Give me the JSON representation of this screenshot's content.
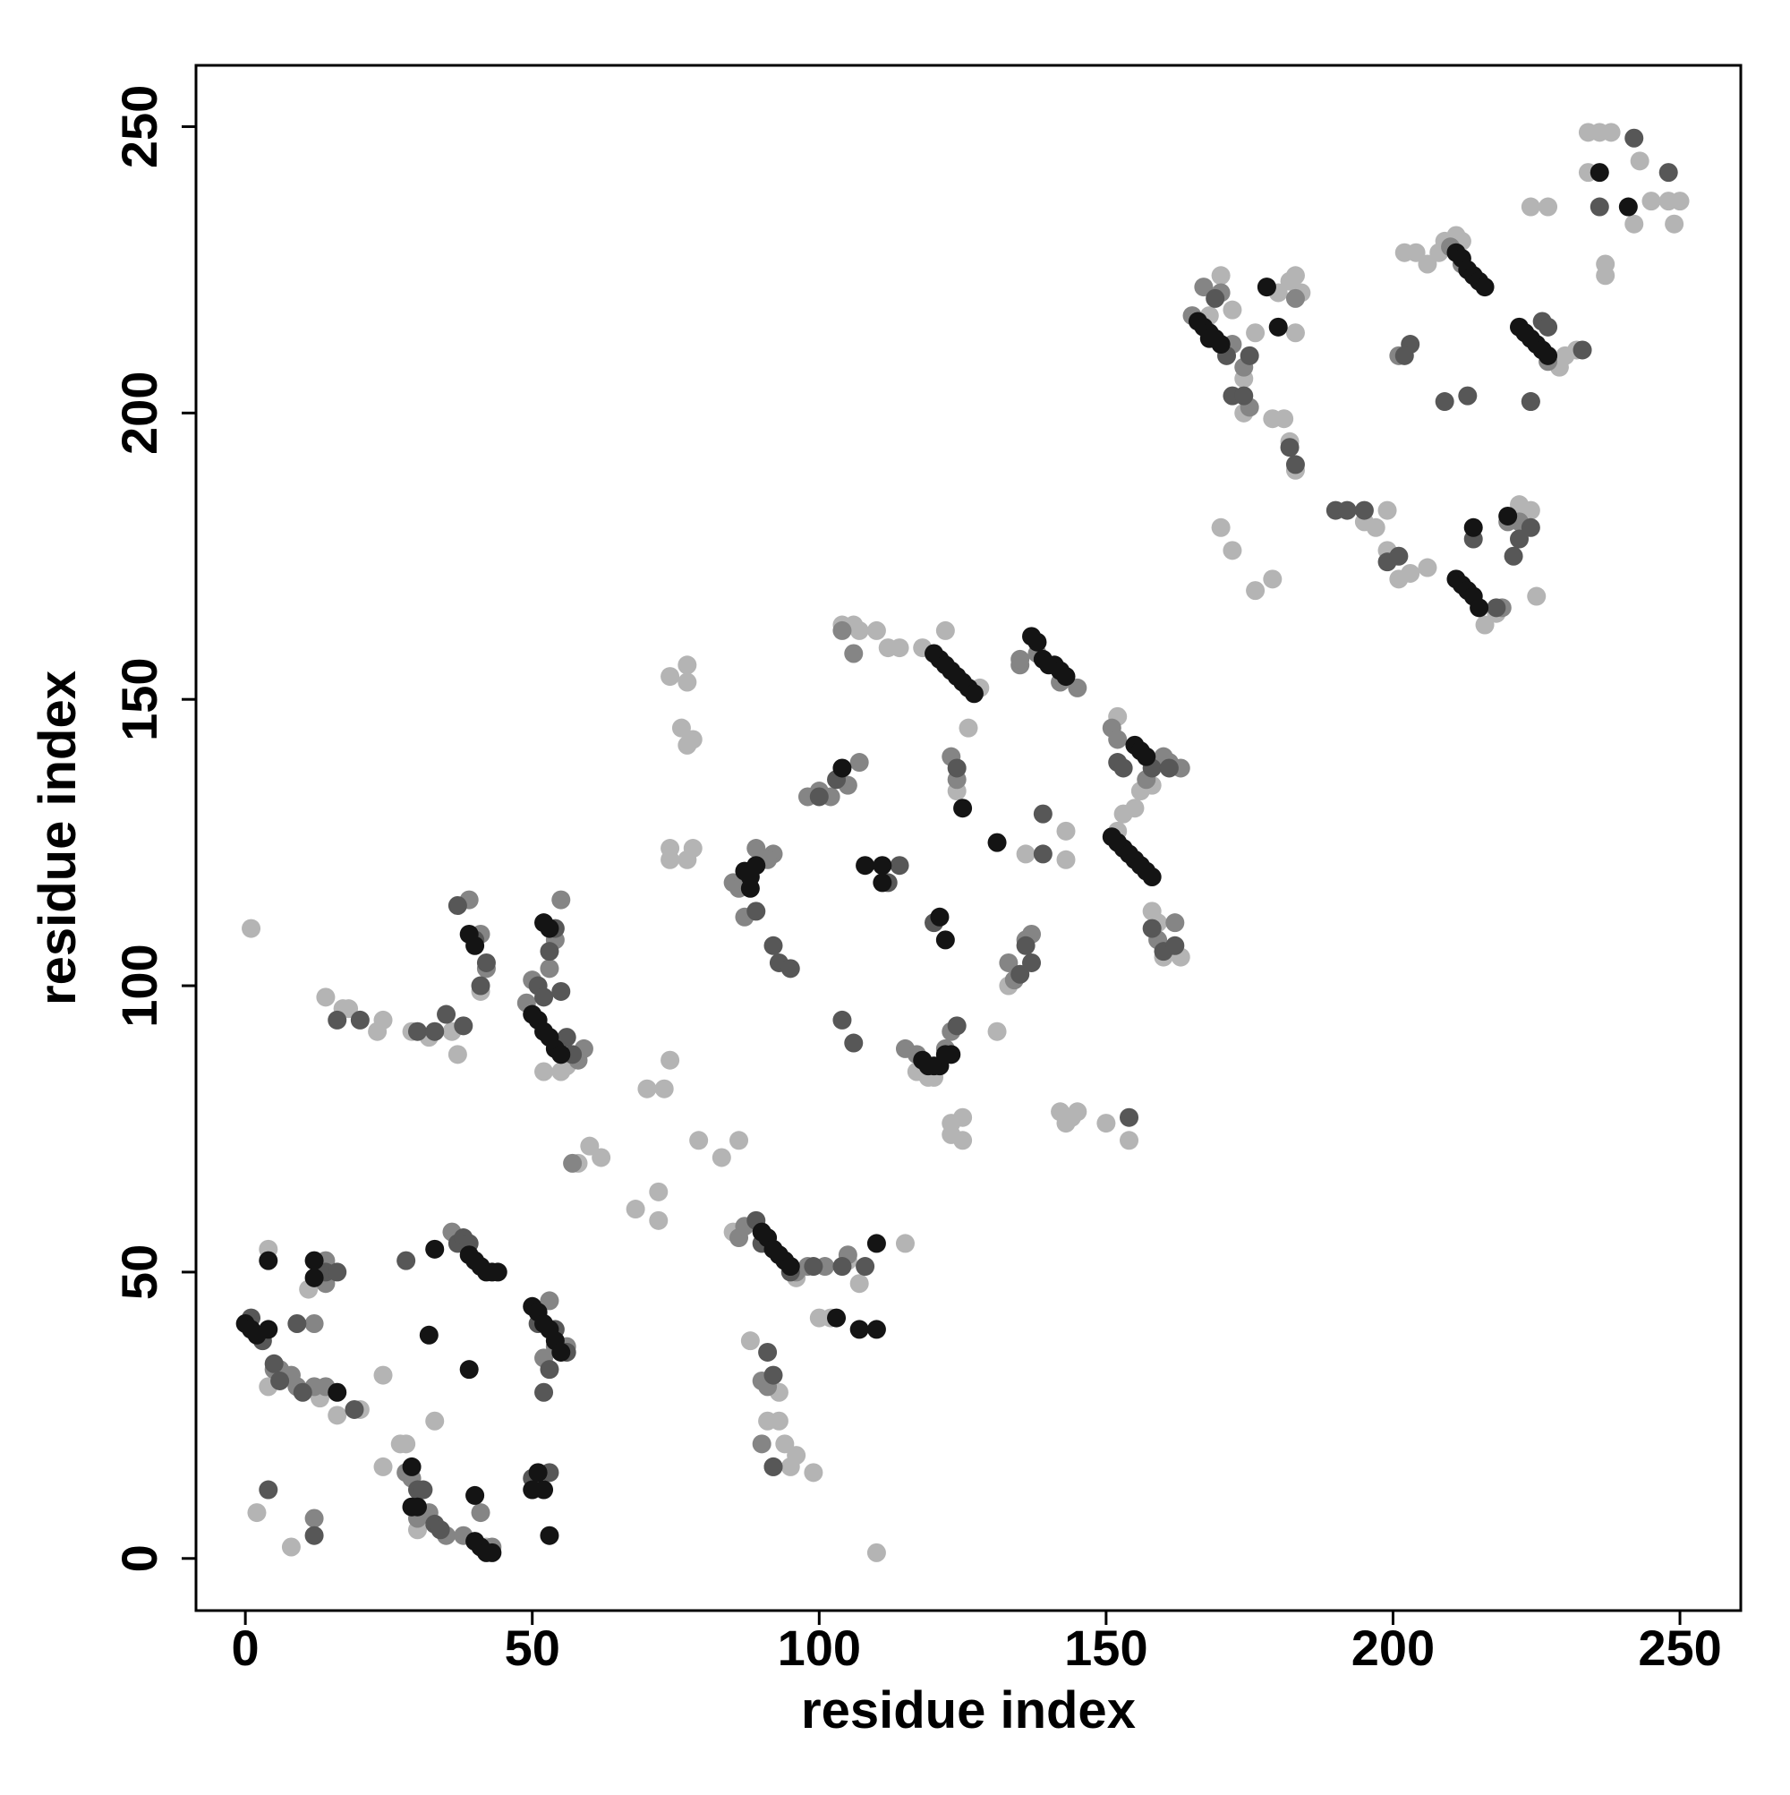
{
  "chart_data": {
    "type": "scatter",
    "x_label": "residue index",
    "y_label": "residue index",
    "xlim": [
      -8.6,
      260.6
    ],
    "ylim": [
      -9.1,
      260.7
    ],
    "xticks": [
      0,
      50,
      100,
      150,
      200,
      250
    ],
    "yticks": [
      0,
      50,
      100,
      150,
      200,
      250
    ],
    "grid": false,
    "series": [
      {
        "color": "#b4b4b4",
        "x": [
          1,
          4,
          2,
          8,
          4,
          11,
          13,
          16,
          20,
          24,
          24,
          27,
          28,
          33,
          30,
          40,
          42,
          41,
          37,
          24,
          23,
          32,
          29,
          36,
          17,
          18,
          14,
          52,
          55,
          56,
          58,
          60,
          62,
          74,
          70,
          73,
          68,
          72,
          72,
          74,
          74,
          77,
          78,
          76,
          77,
          78,
          74,
          77,
          77,
          79,
          83,
          86,
          88,
          91,
          93,
          93,
          94,
          95,
          99,
          96,
          85,
          96,
          100,
          102,
          105,
          107,
          110,
          115,
          104,
          106,
          107,
          110,
          112,
          114,
          118,
          122,
          126,
          124,
          128,
          131,
          133,
          136,
          143,
          143,
          142,
          145,
          143,
          144,
          155,
          152,
          156,
          158,
          160,
          163,
          159,
          158,
          152,
          153,
          150,
          154,
          123,
          125,
          123,
          125,
          117,
          119,
          120,
          168,
          170,
          172,
          174,
          174,
          179,
          181,
          182,
          183,
          180,
          182,
          184,
          183,
          183,
          195,
          197,
          199,
          199,
          201,
          203,
          206,
          202,
          204,
          208,
          209,
          211,
          212,
          206,
          216,
          218,
          222,
          224,
          225,
          224,
          227,
          229,
          230,
          232,
          234,
          236,
          238,
          234,
          237,
          237,
          242,
          245,
          248,
          249,
          250,
          243,
          172,
          176,
          179,
          170,
          176
        ],
        "y": [
          110,
          54,
          8,
          2,
          30,
          47,
          28,
          25,
          26,
          16,
          32,
          20,
          20,
          24,
          5,
          11,
          2,
          99,
          88,
          94,
          92,
          91,
          92,
          92,
          96,
          96,
          98,
          85,
          85,
          86,
          69,
          72,
          70,
          87,
          82,
          82,
          61,
          59,
          64,
          122,
          124,
          122,
          124,
          145,
          142,
          143,
          154,
          153,
          156,
          73,
          70,
          73,
          38,
          24,
          24,
          29,
          20,
          16,
          15,
          18,
          57,
          49,
          42,
          42,
          52,
          48,
          1,
          55,
          163,
          163,
          162,
          162,
          159,
          159,
          159,
          162,
          145,
          134,
          152,
          92,
          100,
          123,
          122,
          127,
          78,
          78,
          76,
          77,
          131,
          147,
          134,
          135,
          105,
          105,
          111,
          113,
          127,
          130,
          76,
          73,
          74,
          77,
          76,
          73,
          85,
          84,
          84,
          217,
          224,
          218,
          206,
          200,
          199,
          199,
          195,
          190,
          221,
          223,
          221,
          224,
          214,
          181,
          180,
          183,
          176,
          171,
          172,
          173,
          228,
          228,
          228,
          230,
          231,
          230,
          226,
          163,
          165,
          184,
          183,
          168,
          236,
          236,
          208,
          210,
          211,
          249,
          249,
          249,
          242,
          226,
          224,
          233,
          237,
          237,
          233,
          237,
          244,
          176,
          169,
          171,
          180,
          214
        ]
      },
      {
        "color": "#858585",
        "x": [
          3,
          5,
          6,
          8,
          9,
          12,
          14,
          12,
          14,
          14,
          28,
          29,
          30,
          32,
          35,
          38,
          41,
          36,
          39,
          41,
          42,
          49,
          50,
          53,
          54,
          55,
          53,
          54,
          56,
          58,
          59,
          52,
          86,
          87,
          93,
          96,
          98,
          101,
          105,
          90,
          91,
          92,
          90,
          85,
          86,
          87,
          89,
          92,
          91,
          98,
          100,
          102,
          105,
          107,
          106,
          104,
          115,
          117,
          122,
          123,
          123,
          124,
          133,
          134,
          136,
          137,
          135,
          135,
          138,
          142,
          145,
          151,
          152,
          157,
          160,
          161,
          163,
          159,
          162,
          165,
          167,
          170,
          172,
          174,
          175,
          178,
          183,
          201,
          210,
          212,
          219,
          220,
          222,
          224,
          227,
          226,
          43,
          57,
          12
        ],
        "y": [
          39,
          33,
          33,
          32,
          30,
          30,
          30,
          41,
          48,
          52,
          15,
          14,
          7,
          8,
          4,
          4,
          8,
          57,
          115,
          109,
          103,
          97,
          101,
          103,
          108,
          115,
          45,
          37,
          37,
          87,
          89,
          35,
          56,
          58,
          53,
          50,
          51,
          51,
          53,
          31,
          30,
          16,
          20,
          118,
          117,
          112,
          124,
          123,
          122,
          133,
          134,
          133,
          135,
          139,
          158,
          162,
          89,
          88,
          89,
          92,
          140,
          136,
          104,
          101,
          108,
          109,
          156,
          157,
          158,
          153,
          152,
          145,
          143,
          136,
          140,
          139,
          138,
          108,
          111,
          217,
          222,
          221,
          212,
          208,
          201,
          222,
          220,
          210,
          229,
          226,
          166,
          181,
          181,
          202,
          209,
          211,
          2,
          69,
          7
        ]
      },
      {
        "color": "#575757",
        "x": [
          1,
          3,
          5,
          6,
          10,
          9,
          14,
          16,
          28,
          29,
          30,
          31,
          33,
          34,
          37,
          38,
          39,
          40,
          42,
          41,
          51,
          52,
          53,
          54,
          56,
          57,
          51,
          54,
          56,
          53,
          52,
          53,
          50,
          4,
          12,
          89,
          90,
          91,
          92,
          92,
          95,
          99,
          104,
          108,
          104,
          106,
          103,
          100,
          89,
          92,
          93,
          95,
          114,
          112,
          120,
          124,
          124,
          135,
          137,
          136,
          139,
          139,
          154,
          152,
          153,
          158,
          161,
          158,
          160,
          162,
          169,
          172,
          174,
          175,
          171,
          183,
          182,
          190,
          192,
          195,
          199,
          201,
          203,
          202,
          209,
          213,
          214,
          218,
          221,
          222,
          224,
          224,
          226,
          227,
          233,
          242,
          248,
          236,
          16,
          20,
          35,
          38,
          30,
          33,
          37,
          55,
          19
        ],
        "y": [
          42,
          38,
          34,
          31,
          29,
          41,
          50,
          50,
          52,
          9,
          12,
          12,
          6,
          5,
          55,
          56,
          55,
          108,
          104,
          100,
          100,
          98,
          106,
          110,
          91,
          88,
          41,
          40,
          36,
          33,
          29,
          15,
          14,
          12,
          4,
          59,
          55,
          36,
          32,
          16,
          50,
          51,
          51,
          51,
          94,
          90,
          136,
          133,
          113,
          107,
          104,
          103,
          121,
          118,
          111,
          138,
          93,
          102,
          104,
          107,
          130,
          123,
          77,
          139,
          138,
          138,
          138,
          110,
          106,
          107,
          220,
          203,
          203,
          210,
          210,
          191,
          194,
          183,
          183,
          183,
          174,
          175,
          212,
          210,
          202,
          203,
          178,
          166,
          175,
          178,
          180,
          202,
          216,
          215,
          211,
          248,
          242,
          236,
          94,
          94,
          95,
          93,
          92,
          92,
          114,
          99,
          26
        ]
      },
      {
        "color": "#141414",
        "x": [
          0,
          1,
          2,
          4,
          4,
          12,
          12,
          16,
          32,
          33,
          39,
          40,
          41,
          42,
          43,
          44,
          39,
          40,
          41,
          42,
          43,
          40,
          29,
          29,
          30,
          50,
          51,
          52,
          53,
          54,
          55,
          51,
          50,
          52,
          53,
          90,
          91,
          92,
          93,
          94,
          95,
          110,
          110,
          107,
          103,
          87,
          88,
          88,
          89,
          104,
          108,
          111,
          111,
          121,
          122,
          118,
          119,
          120,
          121,
          122,
          123,
          125,
          131,
          120,
          121,
          122,
          123,
          124,
          125,
          126,
          127,
          137,
          138,
          139,
          140,
          141,
          142,
          143,
          155,
          156,
          157,
          151,
          152,
          153,
          154,
          155,
          156,
          157,
          158,
          52,
          53,
          54,
          55,
          50,
          51,
          52,
          53,
          39,
          40,
          166,
          167,
          168,
          169,
          170,
          168,
          178,
          180,
          211,
          212,
          213,
          214,
          215,
          216,
          222,
          223,
          224,
          225,
          226,
          227,
          211,
          212,
          213,
          214,
          215,
          214,
          220,
          236,
          241
        ],
        "y": [
          41,
          40,
          39,
          40,
          52,
          52,
          49,
          29,
          39,
          54,
          53,
          52,
          51,
          50,
          50,
          50,
          33,
          3,
          2,
          1,
          1,
          11,
          16,
          9,
          9,
          44,
          43,
          41,
          40,
          38,
          36,
          15,
          12,
          12,
          4,
          57,
          56,
          54,
          53,
          52,
          51,
          55,
          40,
          40,
          42,
          120,
          119,
          117,
          121,
          138,
          121,
          121,
          118,
          112,
          108,
          87,
          86,
          86,
          86,
          88,
          88,
          131,
          125,
          158,
          157,
          156,
          155,
          154,
          153,
          152,
          151,
          161,
          160,
          157,
          156,
          156,
          155,
          154,
          142,
          141,
          140,
          126,
          125,
          124,
          123,
          122,
          121,
          120,
          119,
          111,
          110,
          89,
          88,
          95,
          94,
          92,
          91,
          109,
          107,
          216,
          215,
          214,
          213,
          212,
          213,
          222,
          215,
          228,
          227,
          225,
          224,
          223,
          222,
          215,
          214,
          213,
          212,
          211,
          210,
          171,
          170,
          169,
          168,
          166,
          180,
          182,
          242,
          236
        ]
      }
    ]
  }
}
